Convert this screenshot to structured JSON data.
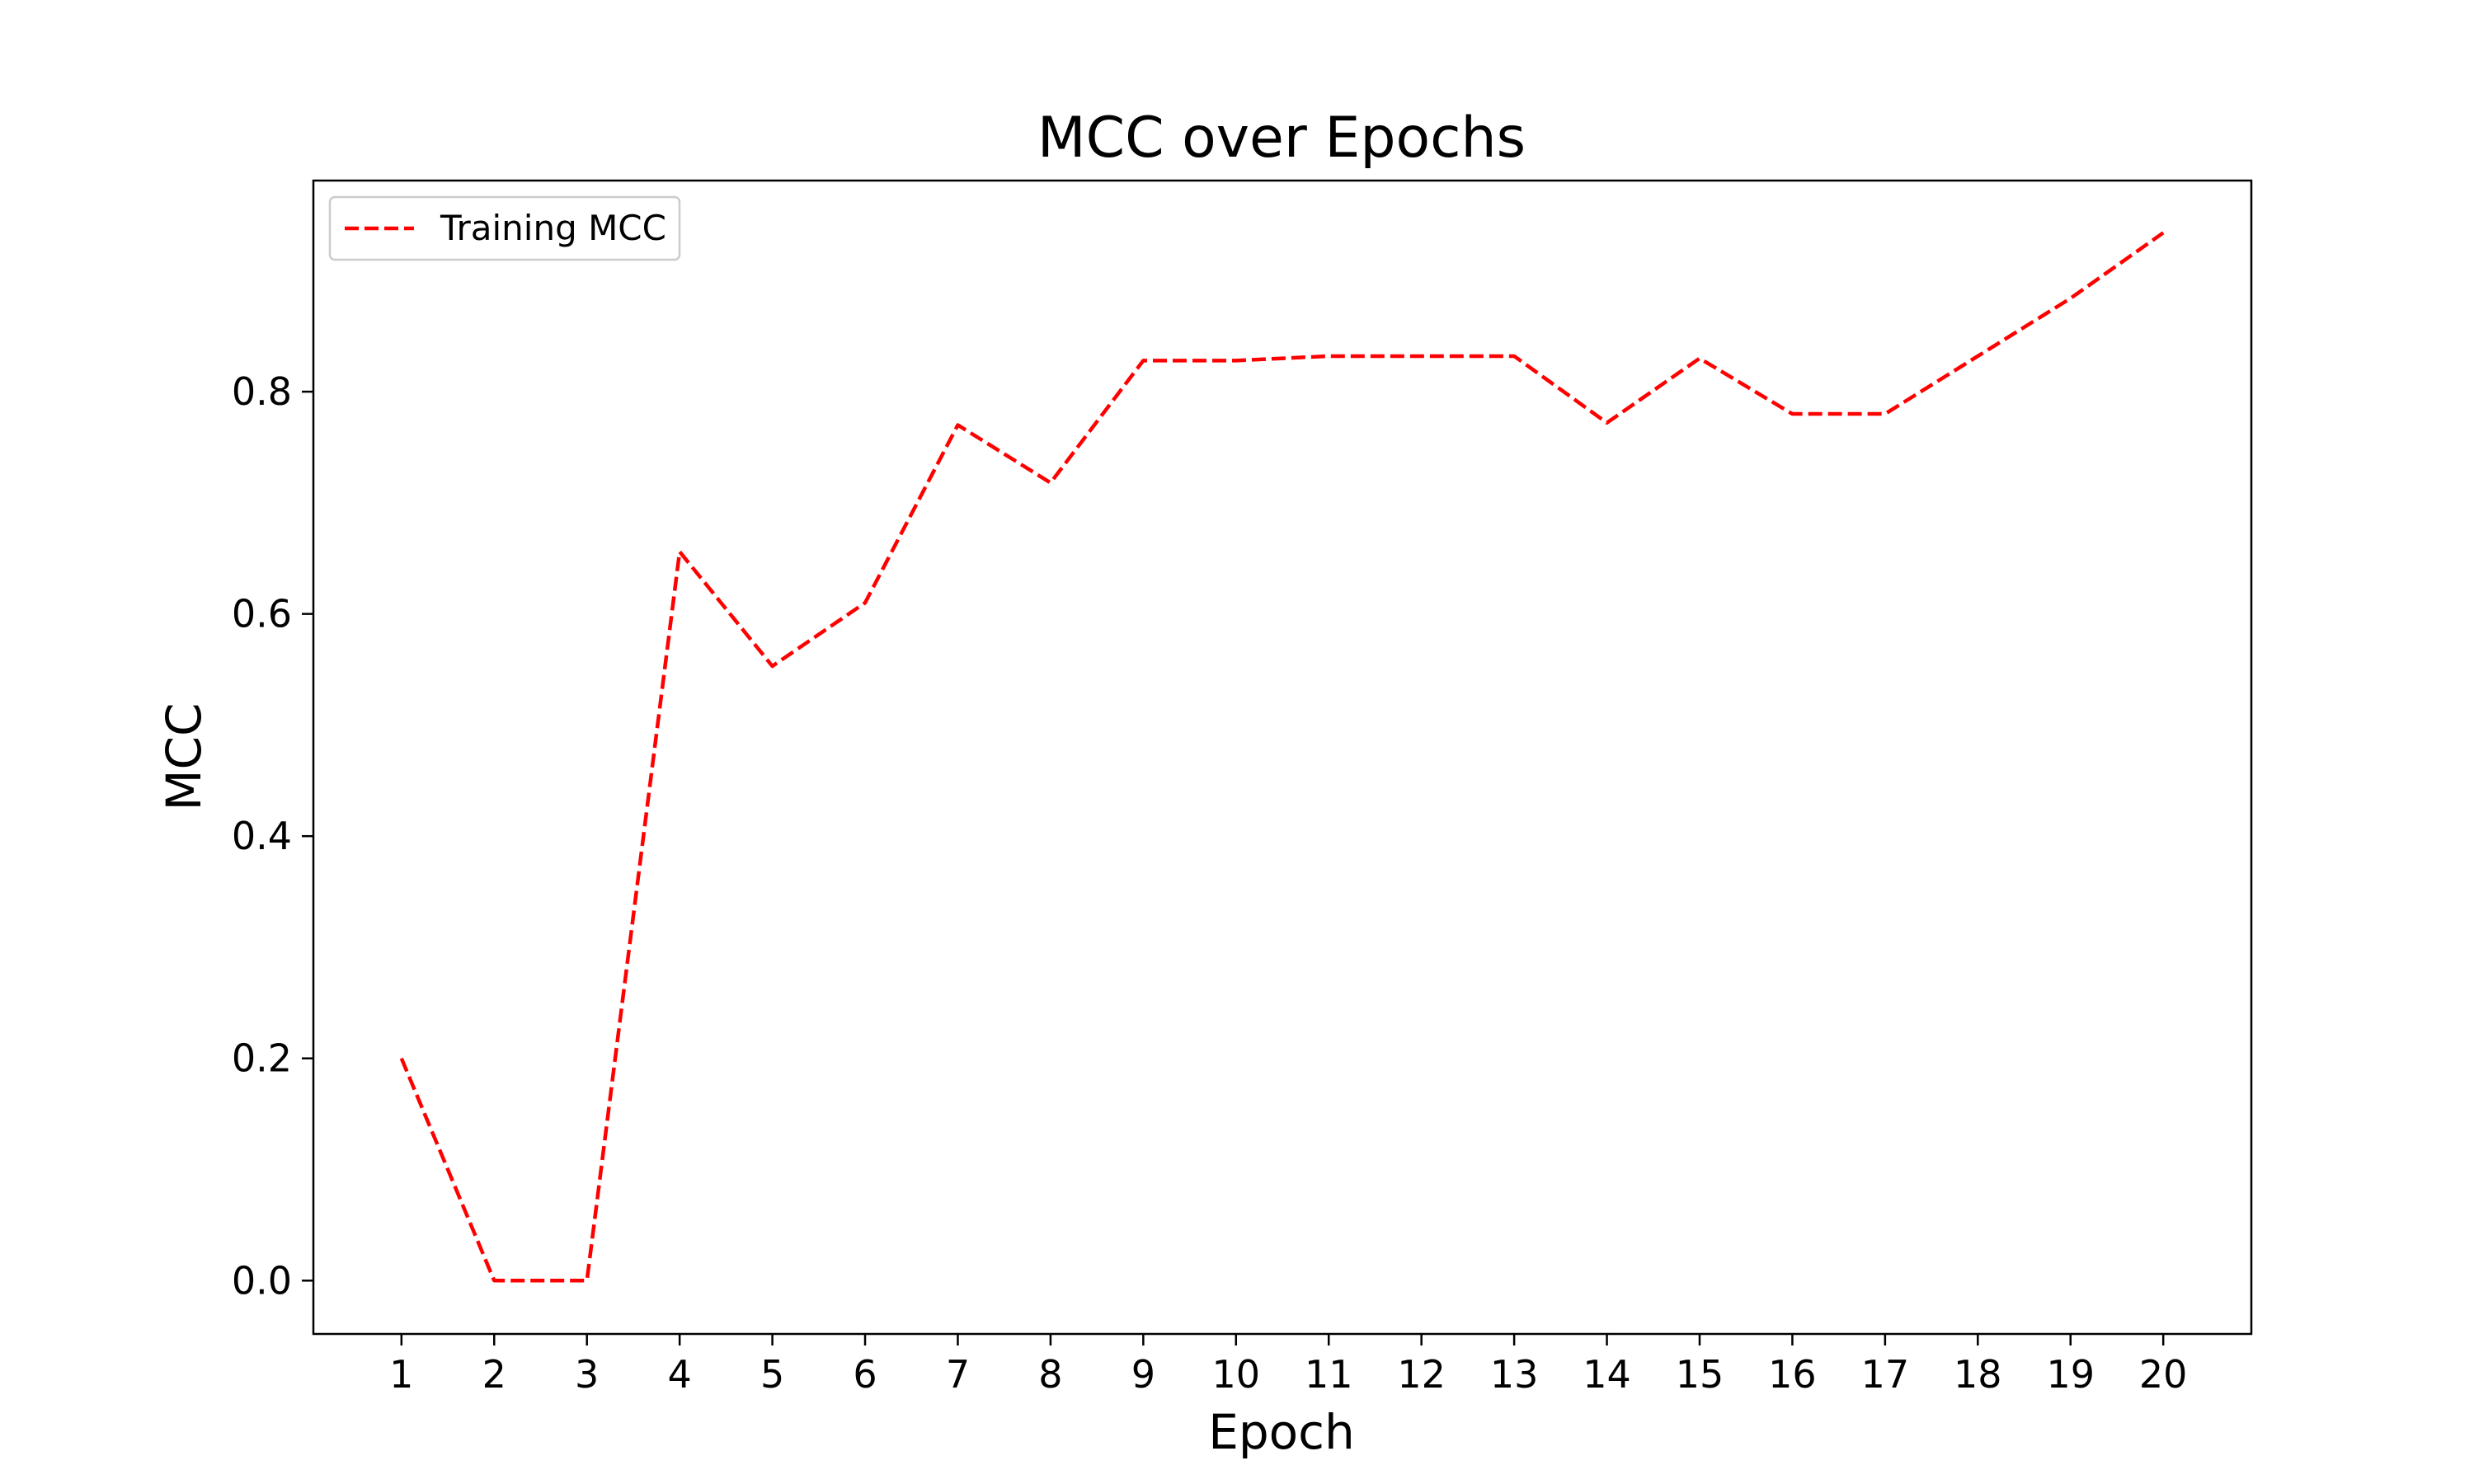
{
  "chart_data": {
    "type": "line",
    "title": "MCC over Epochs",
    "xlabel": "Epoch",
    "ylabel": "MCC",
    "x": [
      1,
      2,
      3,
      4,
      5,
      6,
      7,
      8,
      9,
      10,
      11,
      12,
      13,
      14,
      15,
      16,
      17,
      18,
      19,
      20
    ],
    "xticks": [
      "1",
      "2",
      "3",
      "4",
      "5",
      "6",
      "7",
      "8",
      "9",
      "10",
      "11",
      "12",
      "13",
      "14",
      "15",
      "16",
      "17",
      "18",
      "19",
      "20"
    ],
    "xlim": [
      0.05,
      20.95
    ],
    "yticks": [
      "0.0",
      "0.2",
      "0.4",
      "0.6",
      "0.8"
    ],
    "ylim": [
      -0.048,
      0.99
    ],
    "grid": false,
    "legend_position": "upper-left",
    "series": [
      {
        "name": "Training MCC",
        "color": "#ff0000",
        "line_style": "dashed",
        "values": [
          0.2,
          0.0,
          0.0,
          0.656,
          0.553,
          0.61,
          0.77,
          0.718,
          0.828,
          0.828,
          0.832,
          0.832,
          0.832,
          0.772,
          0.83,
          0.78,
          0.78,
          0.832,
          0.884,
          0.943
        ]
      }
    ]
  }
}
